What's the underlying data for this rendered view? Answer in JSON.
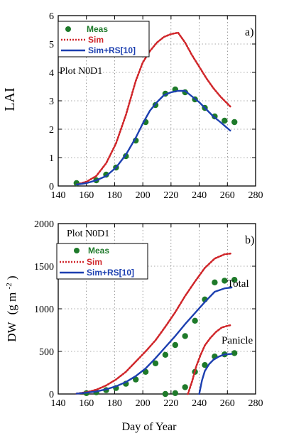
{
  "chart_data": [
    {
      "type": "line",
      "panel": "a)",
      "plot_label": "Plot N0D1",
      "xlabel": "",
      "ylabel": "LAI",
      "xlim": [
        140,
        280
      ],
      "ylim": [
        0,
        6
      ],
      "xticks": [
        140,
        160,
        180,
        200,
        220,
        240,
        260,
        280
      ],
      "yticks": [
        0,
        1,
        2,
        3,
        4,
        5,
        6
      ],
      "grid": true,
      "legend_position": "top-left",
      "colors": {
        "meas": "#1e7a2a",
        "sim": "#d0262a",
        "simrs": "#1c3fb0"
      },
      "series": [
        {
          "name": "Meas",
          "style": "points",
          "x": [
            153,
            167,
            174,
            181,
            188,
            195,
            202,
            209,
            216,
            223,
            230,
            237,
            244,
            251,
            258,
            265
          ],
          "y": [
            0.1,
            0.2,
            0.4,
            0.65,
            1.05,
            1.6,
            2.25,
            2.85,
            3.25,
            3.4,
            3.3,
            3.05,
            2.75,
            2.45,
            2.3,
            2.25
          ]
        },
        {
          "name": "Sim",
          "style": "dotted",
          "x": [
            153,
            160,
            167,
            174,
            181,
            188,
            195,
            200,
            205,
            210,
            215,
            220,
            225,
            230,
            235,
            240,
            245,
            250,
            255,
            262
          ],
          "y": [
            0.05,
            0.15,
            0.35,
            0.8,
            1.5,
            2.5,
            3.7,
            4.35,
            4.75,
            5.05,
            5.25,
            5.35,
            5.4,
            5.05,
            4.6,
            4.2,
            3.8,
            3.45,
            3.15,
            2.8
          ]
        },
        {
          "name": "Sim+RS[10]",
          "style": "solid",
          "x": [
            153,
            160,
            167,
            174,
            181,
            188,
            195,
            200,
            205,
            210,
            215,
            220,
            225,
            230,
            235,
            240,
            245,
            250,
            255,
            262
          ],
          "y": [
            0.05,
            0.1,
            0.2,
            0.35,
            0.65,
            1.1,
            1.7,
            2.2,
            2.65,
            2.95,
            3.2,
            3.3,
            3.35,
            3.35,
            3.15,
            2.95,
            2.7,
            2.45,
            2.25,
            1.95
          ]
        }
      ]
    },
    {
      "type": "line",
      "panel": "b)",
      "plot_label": "Plot N0D1",
      "xlabel": "Day of Year",
      "ylabel": "DW",
      "ylabel_unit": "(g m",
      "ylabel_sup": "-2",
      "ylabel_close": ")",
      "xlim": [
        140,
        280
      ],
      "ylim": [
        0,
        2000
      ],
      "xticks": [
        140,
        160,
        180,
        200,
        220,
        240,
        260,
        280
      ],
      "yticks": [
        0,
        500,
        1000,
        1500,
        2000
      ],
      "grid": true,
      "legend_position": "top-left",
      "annotations": {
        "total": "Total",
        "panicle": "Panicle"
      },
      "colors": {
        "meas": "#1e7a2a",
        "sim": "#d0262a",
        "simrs": "#1c3fb0"
      },
      "series": [
        {
          "name": "Meas",
          "group": "Total",
          "style": "points",
          "x": [
            160,
            167,
            174,
            181,
            188,
            195,
            202,
            209,
            216,
            223,
            230,
            237,
            244,
            251,
            258,
            265
          ],
          "y": [
            10,
            20,
            45,
            70,
            120,
            170,
            260,
            360,
            460,
            575,
            680,
            860,
            1110,
            1310,
            1330,
            1340
          ]
        },
        {
          "name": "Sim",
          "group": "Total",
          "style": "dotted",
          "x": [
            153,
            160,
            167,
            174,
            181,
            188,
            195,
            202,
            209,
            216,
            223,
            230,
            237,
            244,
            251,
            258,
            263
          ],
          "y": [
            5,
            20,
            50,
            100,
            170,
            260,
            380,
            500,
            630,
            790,
            960,
            1150,
            1320,
            1480,
            1590,
            1640,
            1650
          ]
        },
        {
          "name": "Sim+RS[10]",
          "group": "Total",
          "style": "solid",
          "x": [
            153,
            160,
            167,
            174,
            181,
            188,
            195,
            202,
            209,
            216,
            223,
            230,
            237,
            244,
            251,
            258,
            263
          ],
          "y": [
            5,
            15,
            30,
            55,
            90,
            140,
            210,
            300,
            420,
            550,
            680,
            820,
            950,
            1080,
            1200,
            1240,
            1250
          ]
        },
        {
          "name": "Meas",
          "group": "Panicle",
          "style": "points",
          "x": [
            216,
            223,
            230,
            237,
            244,
            251,
            258,
            265
          ],
          "y": [
            0,
            10,
            80,
            260,
            340,
            440,
            465,
            480
          ]
        },
        {
          "name": "Sim",
          "group": "Panicle",
          "style": "dotted",
          "x": [
            232,
            235,
            238,
            241,
            244,
            248,
            252,
            256,
            260,
            263
          ],
          "y": [
            0,
            150,
            330,
            460,
            570,
            660,
            730,
            780,
            800,
            810
          ]
        },
        {
          "name": "Sim+RS[10]",
          "group": "Panicle",
          "style": "solid",
          "x": [
            240,
            242,
            244,
            247,
            250,
            254,
            258,
            263
          ],
          "y": [
            0,
            160,
            270,
            350,
            400,
            440,
            465,
            470
          ]
        }
      ]
    }
  ]
}
